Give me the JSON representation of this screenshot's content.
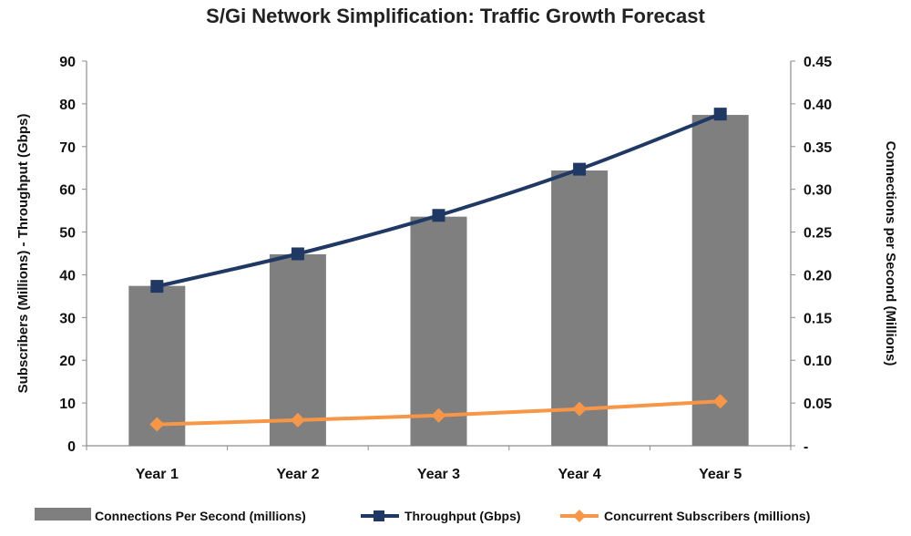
{
  "chart_data": {
    "type": "bar",
    "title": "S/Gi Network Simplification: Traffic Growth Forecast",
    "categories": [
      "Year 1",
      "Year 2",
      "Year 3",
      "Year 4",
      "Year 5"
    ],
    "ylabel_left": "Subscribers (Millions) - Throughput (Gbps)",
    "ylabel_right": "Connections per Second (Millions)",
    "y_left": {
      "min": 0,
      "max": 90,
      "ticks": [
        "0",
        "10",
        "20",
        "30",
        "40",
        "50",
        "60",
        "70",
        "80",
        "90"
      ]
    },
    "y_right": {
      "min": 0,
      "max": 0.45,
      "ticks": [
        "-",
        "0.05",
        "0.10",
        "0.15",
        "0.20",
        "0.25",
        "0.30",
        "0.35",
        "0.40",
        "0.45"
      ]
    },
    "series": [
      {
        "name": "Connections Per Second (millions)",
        "type": "bar",
        "axis": "right",
        "color": "#7f7f7f",
        "values": [
          0.187,
          0.224,
          0.268,
          0.322,
          0.387
        ]
      },
      {
        "name": "Throughput (Gbps)",
        "type": "line",
        "axis": "left",
        "color": "#1f3864",
        "marker": "square",
        "values": [
          37.3,
          44.9,
          53.9,
          64.7,
          77.6
        ]
      },
      {
        "name": "Concurrent Subscribers (millions)",
        "type": "line",
        "axis": "left",
        "color": "#f79646",
        "marker": "diamond",
        "values": [
          5.0,
          6.0,
          7.1,
          8.6,
          10.4
        ]
      }
    ],
    "grid": false,
    "legend_position": "bottom"
  }
}
